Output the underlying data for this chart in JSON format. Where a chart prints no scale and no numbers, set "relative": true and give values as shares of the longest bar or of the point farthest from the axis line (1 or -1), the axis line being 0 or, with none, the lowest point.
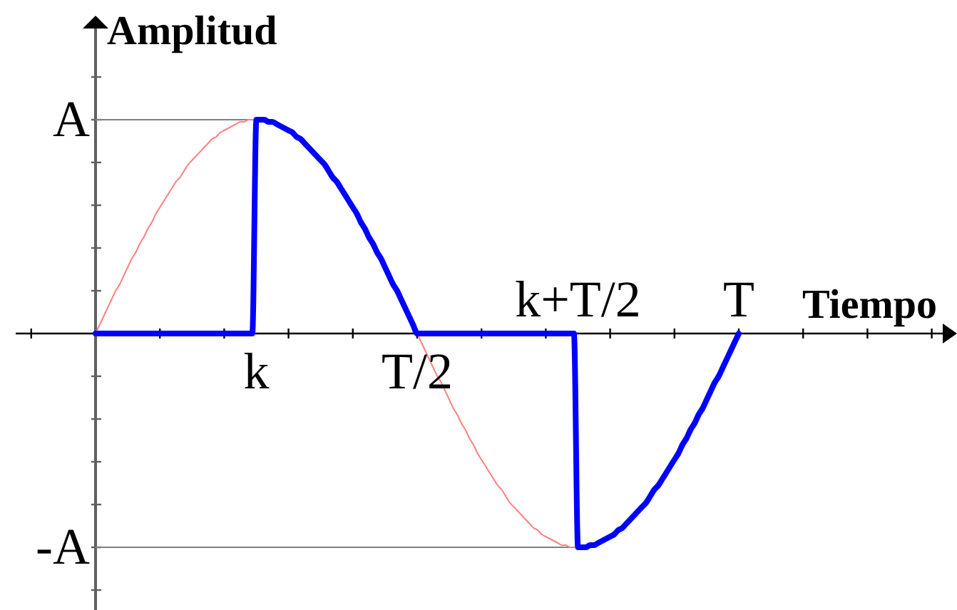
{
  "chart_data": {
    "type": "line",
    "relative": true,
    "xlabel": "Tiempo",
    "ylabel": "Amplitud",
    "marker": "none",
    "categories": [
      null,
      null,
      null,
      null,
      null,
      null,
      null,
      null,
      null,
      null,
      null,
      null,
      null,
      null,
      null,
      null,
      null,
      null,
      null,
      null,
      null,
      null,
      null,
      null,
      null,
      null,
      null,
      null,
      null,
      null,
      null,
      null,
      null,
      null,
      null,
      null,
      null,
      null,
      null,
      null,
      "k",
      null,
      null,
      null,
      null,
      null,
      null,
      null,
      null,
      null,
      null,
      null,
      null,
      null,
      null,
      null,
      null,
      null,
      null,
      null,
      null,
      null,
      null,
      null,
      null,
      null,
      null,
      null,
      null,
      null,
      null,
      null,
      null,
      null,
      null,
      null,
      null,
      null,
      null,
      null,
      "T/2",
      null,
      null,
      null,
      null,
      null,
      null,
      null,
      null,
      null,
      null,
      null,
      null,
      null,
      null,
      null,
      null,
      null,
      null,
      null,
      null,
      null,
      null,
      null,
      null,
      null,
      null,
      null,
      null,
      null,
      null,
      null,
      null,
      null,
      null,
      null,
      null,
      null,
      null,
      null,
      "k+T/2",
      null,
      null,
      null,
      null,
      null,
      null,
      null,
      null,
      null,
      null,
      null,
      null,
      null,
      null,
      null,
      null,
      null,
      null,
      null,
      null,
      null,
      null,
      null,
      null,
      null,
      null,
      null,
      null,
      null,
      null,
      null,
      null,
      null,
      null,
      null,
      null,
      null,
      null,
      null,
      "T"
    ],
    "series": [
      {
        "name": "A",
        "color": "#808080",
        "values": [
          1,
          1,
          1,
          1,
          1,
          1,
          1,
          1,
          1,
          1,
          1,
          1,
          1,
          1,
          1,
          1,
          1,
          1,
          1,
          1,
          1,
          1,
          1,
          1,
          1,
          1,
          1,
          1,
          1,
          1,
          1,
          1,
          1,
          1,
          1,
          1,
          1,
          1,
          1,
          1,
          1,
          null,
          null,
          null,
          null,
          null,
          null,
          null,
          null,
          null,
          null,
          null,
          null,
          null,
          null,
          null,
          null,
          null,
          null,
          null,
          null,
          null,
          null,
          null,
          null,
          null,
          null,
          null,
          null,
          null,
          null,
          null,
          null,
          null,
          null,
          null,
          null,
          null,
          null,
          null,
          null,
          null,
          null,
          null,
          null,
          null,
          null,
          null,
          null,
          null,
          null,
          null,
          null,
          null,
          null,
          null,
          null,
          null,
          null,
          null,
          null,
          null,
          null,
          null,
          null,
          null,
          null,
          null,
          null,
          null,
          null,
          null,
          null,
          null,
          null,
          null,
          null,
          null,
          null,
          null,
          null,
          null,
          null,
          null,
          null,
          null,
          null,
          null,
          null,
          null,
          null,
          null,
          null,
          null,
          null,
          null,
          null,
          null,
          null,
          null,
          null,
          null,
          null,
          null,
          null,
          null,
          null,
          null,
          null,
          null,
          null,
          null,
          null,
          null,
          null,
          null,
          null,
          null,
          null,
          null,
          null
        ]
      },
      {
        "name": "-A",
        "color": "#808080",
        "values": [
          -1,
          -1,
          -1,
          -1,
          -1,
          -1,
          -1,
          -1,
          -1,
          -1,
          -1,
          -1,
          -1,
          -1,
          -1,
          -1,
          -1,
          -1,
          -1,
          -1,
          -1,
          -1,
          -1,
          -1,
          -1,
          -1,
          -1,
          -1,
          -1,
          -1,
          -1,
          -1,
          -1,
          -1,
          -1,
          -1,
          -1,
          -1,
          -1,
          -1,
          -1,
          -1,
          -1,
          -1,
          -1,
          -1,
          -1,
          -1,
          -1,
          -1,
          -1,
          -1,
          -1,
          -1,
          -1,
          -1,
          -1,
          -1,
          -1,
          -1,
          -1,
          -1,
          -1,
          -1,
          -1,
          -1,
          -1,
          -1,
          -1,
          -1,
          -1,
          -1,
          -1,
          -1,
          -1,
          -1,
          -1,
          -1,
          -1,
          -1,
          -1,
          -1,
          -1,
          -1,
          -1,
          -1,
          -1,
          -1,
          -1,
          -1,
          -1,
          -1,
          -1,
          -1,
          -1,
          -1,
          -1,
          -1,
          -1,
          -1,
          -1,
          -1,
          -1,
          -1,
          -1,
          -1,
          -1,
          -1,
          -1,
          -1,
          -1,
          -1,
          -1,
          -1,
          -1,
          -1,
          -1,
          -1,
          -1,
          -1,
          -1,
          null,
          null,
          null,
          null,
          null,
          null,
          null,
          null,
          null,
          null,
          null,
          null,
          null,
          null,
          null,
          null,
          null,
          null,
          null,
          null,
          null,
          null,
          null,
          null,
          null,
          null,
          null,
          null,
          null,
          null,
          null,
          null,
          null,
          null,
          null,
          null,
          null,
          null,
          null,
          null
        ]
      },
      {
        "color": "#ff8080",
        "values": [
          0,
          0.04,
          0.08,
          0.12,
          0.16,
          0.2,
          0.23,
          0.27,
          0.31,
          0.35,
          0.38,
          0.42,
          0.45,
          0.49,
          0.52,
          0.56,
          0.59,
          0.62,
          0.65,
          0.68,
          0.71,
          0.73,
          0.76,
          0.79,
          0.81,
          0.83,
          0.85,
          0.87,
          0.89,
          0.91,
          0.92,
          0.94,
          0.95,
          0.96,
          0.97,
          0.98,
          0.99,
          0.99,
          1,
          1,
          1,
          null,
          null,
          null,
          null,
          null,
          null,
          null,
          null,
          null,
          null,
          null,
          null,
          null,
          null,
          null,
          null,
          null,
          null,
          null,
          null,
          null,
          null,
          null,
          null,
          null,
          null,
          null,
          null,
          null,
          null,
          null,
          null,
          null,
          null,
          null,
          null,
          null,
          null,
          null,
          0,
          -0.04,
          -0.08,
          -0.12,
          -0.16,
          -0.2,
          -0.23,
          -0.27,
          -0.31,
          -0.35,
          -0.38,
          -0.42,
          -0.45,
          -0.49,
          -0.52,
          -0.56,
          -0.59,
          -0.62,
          -0.65,
          -0.68,
          -0.71,
          -0.73,
          -0.76,
          -0.79,
          -0.81,
          -0.83,
          -0.85,
          -0.87,
          -0.89,
          -0.91,
          -0.92,
          -0.94,
          -0.95,
          -0.96,
          -0.97,
          -0.98,
          -0.99,
          -0.99,
          -1,
          -1,
          -1,
          null,
          null,
          null,
          null,
          null,
          null,
          null,
          null,
          null,
          null,
          null,
          null,
          null,
          null,
          null,
          null,
          null,
          null,
          null,
          null,
          null,
          null,
          null,
          null,
          null,
          null,
          null,
          null,
          null,
          null,
          null,
          null,
          null,
          null,
          null,
          null,
          null,
          null,
          null,
          null
        ]
      },
      {
        "color": "#0000ff",
        "values": [
          0,
          0,
          0,
          0,
          0,
          0,
          0,
          0,
          0,
          0,
          0,
          0,
          0,
          0,
          0,
          0,
          0,
          0,
          0,
          0,
          0,
          0,
          0,
          0,
          0,
          0,
          0,
          0,
          0,
          0,
          0,
          0,
          0,
          0,
          0,
          0,
          0,
          0,
          0,
          0,
          1,
          1,
          1,
          0.99,
          0.99,
          0.98,
          0.97,
          0.96,
          0.95,
          0.94,
          0.92,
          0.91,
          0.89,
          0.87,
          0.85,
          0.83,
          0.81,
          0.79,
          0.76,
          0.73,
          0.71,
          0.68,
          0.65,
          0.62,
          0.59,
          0.56,
          0.52,
          0.49,
          0.45,
          0.42,
          0.38,
          0.35,
          0.31,
          0.27,
          0.23,
          0.2,
          0.16,
          0.12,
          0.08,
          0.04,
          0,
          0,
          0,
          0,
          0,
          0,
          0,
          0,
          0,
          0,
          0,
          0,
          0,
          0,
          0,
          0,
          0,
          0,
          0,
          0,
          0,
          0,
          0,
          0,
          0,
          0,
          0,
          0,
          0,
          0,
          0,
          0,
          0,
          0,
          0,
          0,
          0,
          0,
          0,
          0,
          -1,
          -1,
          -1,
          -0.99,
          -0.99,
          -0.98,
          -0.97,
          -0.96,
          -0.95,
          -0.94,
          -0.92,
          -0.91,
          -0.89,
          -0.87,
          -0.85,
          -0.83,
          -0.81,
          -0.79,
          -0.76,
          -0.73,
          -0.71,
          -0.68,
          -0.65,
          -0.62,
          -0.59,
          -0.56,
          -0.52,
          -0.49,
          -0.45,
          -0.42,
          -0.38,
          -0.35,
          -0.31,
          -0.27,
          -0.23,
          -0.2,
          -0.16,
          -0.12,
          -0.08,
          -0.04,
          0
        ]
      }
    ]
  }
}
